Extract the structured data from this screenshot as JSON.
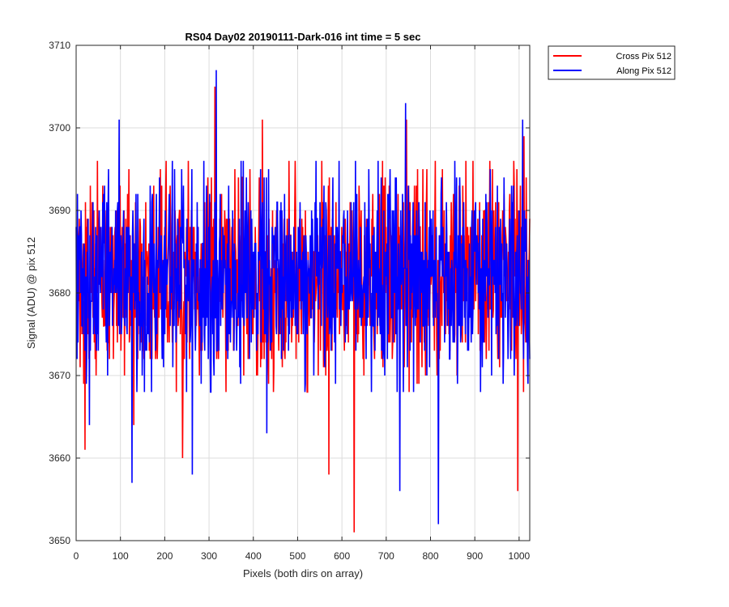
{
  "chart_data": {
    "type": "line",
    "title": "RS04 Day02 20190111-Dark-016 int time = 5 sec",
    "xlabel": "Pixels (both dirs on array)",
    "ylabel": "Signal (ADU) @ pix 512",
    "xlim": [
      0,
      1024
    ],
    "ylim": [
      3650,
      3710
    ],
    "xticks": [
      0,
      100,
      200,
      300,
      400,
      500,
      600,
      700,
      800,
      900,
      1000
    ],
    "yticks": [
      3650,
      3660,
      3670,
      3680,
      3690,
      3700,
      3710
    ],
    "grid": true,
    "legend_position": "outside-top-right",
    "series": [
      {
        "name": "Cross Pix 512",
        "color": "#ff0000",
        "mean": 3682,
        "std": 6,
        "points": 1024,
        "extremes": [
          [
            313,
            3705
          ],
          [
            420,
            3701
          ],
          [
            627,
            3651
          ],
          [
            745,
            3701
          ],
          [
            996,
            3656
          ],
          [
            240,
            3660
          ],
          [
            570,
            3658
          ],
          [
            1010,
            3699
          ],
          [
            130,
            3664
          ],
          [
            20,
            3661
          ]
        ]
      },
      {
        "name": "Along Pix 512",
        "color": "#0000ff",
        "mean": 3682,
        "std": 6,
        "points": 1024,
        "extremes": [
          [
            316,
            3707
          ],
          [
            97,
            3701
          ],
          [
            743,
            3703
          ],
          [
            1007,
            3701
          ],
          [
            817,
            3652
          ],
          [
            730,
            3656
          ],
          [
            126,
            3657
          ],
          [
            262,
            3658
          ],
          [
            430,
            3663
          ],
          [
            30,
            3664
          ]
        ]
      }
    ]
  }
}
